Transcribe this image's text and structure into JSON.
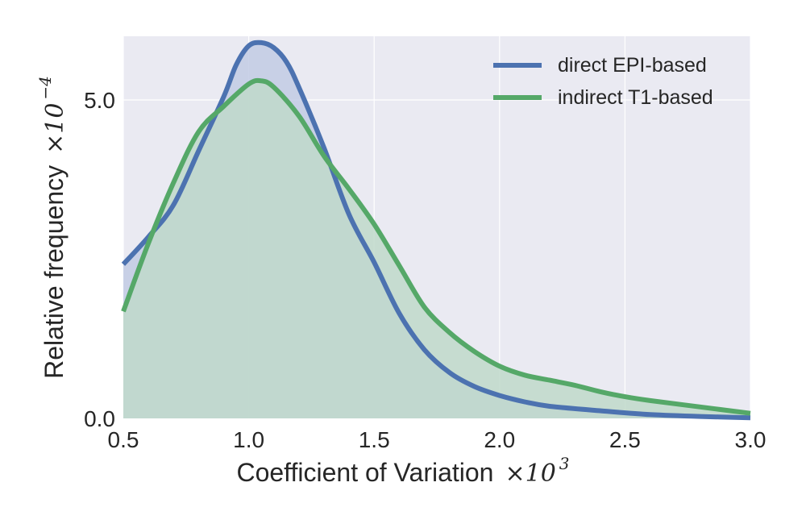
{
  "chart_data": {
    "type": "area",
    "title": "",
    "xlabel": "Coefficient of Variation",
    "xlabel_scale": "×10",
    "xlabel_exponent": "3",
    "ylabel": "Relative frequency",
    "ylabel_scale": "×10",
    "ylabel_exponent": "−4",
    "xlim": [
      0.5,
      3.0
    ],
    "ylim": [
      0.0,
      6.0
    ],
    "x_ticks": [
      0.5,
      1.0,
      1.5,
      2.0,
      2.5,
      3.0
    ],
    "x_tick_labels": [
      "0.5",
      "1.0",
      "1.5",
      "2.0",
      "2.5",
      "3.0"
    ],
    "y_ticks": [
      0.0,
      5.0
    ],
    "y_tick_labels": [
      "0.0",
      "5.0"
    ],
    "grid": true,
    "legend": "top-right",
    "series": [
      {
        "name": "direct EPI-based",
        "color": "#4c72b0",
        "fill": "#c2cbe4",
        "x": [
          0.5,
          0.6,
          0.7,
          0.8,
          0.9,
          0.95,
          1.0,
          1.05,
          1.1,
          1.15,
          1.2,
          1.3,
          1.4,
          1.5,
          1.6,
          1.7,
          1.8,
          1.9,
          2.0,
          2.1,
          2.2,
          2.4,
          2.6,
          2.8,
          3.0
        ],
        "y": [
          2.42,
          2.85,
          3.35,
          4.2,
          5.05,
          5.55,
          5.85,
          5.9,
          5.82,
          5.6,
          5.2,
          4.25,
          3.2,
          2.45,
          1.65,
          1.08,
          0.72,
          0.5,
          0.36,
          0.26,
          0.19,
          0.12,
          0.06,
          0.03,
          0.01
        ]
      },
      {
        "name": "indirect T1-based",
        "color": "#55a868",
        "fill": "#c0d9ca",
        "x": [
          0.5,
          0.6,
          0.7,
          0.8,
          0.9,
          1.0,
          1.05,
          1.1,
          1.2,
          1.3,
          1.4,
          1.5,
          1.6,
          1.7,
          1.8,
          1.9,
          2.0,
          2.1,
          2.2,
          2.3,
          2.4,
          2.5,
          2.6,
          2.8,
          3.0
        ],
        "y": [
          1.68,
          2.75,
          3.7,
          4.5,
          4.9,
          5.25,
          5.3,
          5.2,
          4.75,
          4.12,
          3.6,
          3.05,
          2.4,
          1.75,
          1.35,
          1.05,
          0.82,
          0.68,
          0.6,
          0.52,
          0.42,
          0.34,
          0.28,
          0.18,
          0.08
        ]
      }
    ]
  }
}
